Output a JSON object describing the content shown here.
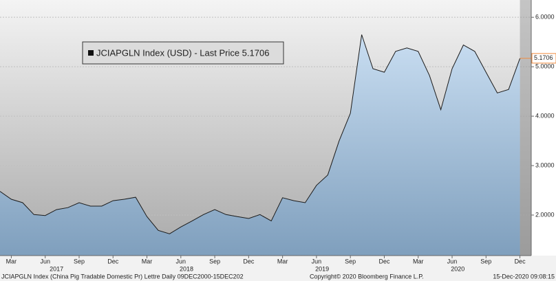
{
  "chart_data": {
    "type": "area",
    "series": [
      {
        "name": "JCIAPGLN Index (USD) - Last Price 5.1706",
        "color": "#1a1a1a",
        "x": [
          "2017-02",
          "2017-03",
          "2017-04",
          "2017-05",
          "2017-06",
          "2017-07",
          "2017-08",
          "2017-09",
          "2017-10",
          "2017-11",
          "2017-12",
          "2018-01",
          "2018-02",
          "2018-03",
          "2018-04",
          "2018-05",
          "2018-06",
          "2018-07",
          "2018-08",
          "2018-09",
          "2018-10",
          "2018-11",
          "2018-12",
          "2019-01",
          "2019-02",
          "2019-03",
          "2019-04",
          "2019-05",
          "2019-06",
          "2019-07",
          "2019-08",
          "2019-09",
          "2019-10",
          "2019-11",
          "2019-12",
          "2020-01",
          "2020-02",
          "2020-03",
          "2020-04",
          "2020-05",
          "2020-06",
          "2020-07",
          "2020-08",
          "2020-09",
          "2020-10",
          "2020-11",
          "2020-12"
        ],
        "values": [
          2.48,
          2.32,
          2.25,
          2.01,
          1.99,
          2.11,
          2.15,
          2.25,
          2.18,
          2.18,
          2.29,
          2.32,
          2.36,
          1.97,
          1.69,
          1.62,
          1.76,
          1.88,
          2.01,
          2.11,
          2.01,
          1.97,
          1.93,
          2.01,
          1.88,
          2.35,
          2.29,
          2.25,
          2.6,
          2.81,
          3.5,
          4.06,
          5.65,
          4.96,
          4.89,
          5.31,
          5.38,
          5.31,
          4.82,
          4.13,
          4.96,
          5.44,
          5.31,
          4.89,
          4.47,
          4.54,
          5.1706
        ]
      }
    ],
    "xlim": [
      "2017-02",
      "2021-01"
    ],
    "xticks": [
      {
        "value": "2017-03",
        "label": "Mar"
      },
      {
        "value": "2017-06",
        "label": "Jun"
      },
      {
        "value": "2017-09",
        "label": "Sep"
      },
      {
        "value": "2017-12",
        "label": "Dec"
      },
      {
        "value": "2018-03",
        "label": "Mar"
      },
      {
        "value": "2018-06",
        "label": "Jun"
      },
      {
        "value": "2018-09",
        "label": "Sep"
      },
      {
        "value": "2018-12",
        "label": "Dec"
      },
      {
        "value": "2019-03",
        "label": "Mar"
      },
      {
        "value": "2019-06",
        "label": "Jun"
      },
      {
        "value": "2019-09",
        "label": "Sep"
      },
      {
        "value": "2019-12",
        "label": "Dec"
      },
      {
        "value": "2020-03",
        "label": "Mar"
      },
      {
        "value": "2020-06",
        "label": "Jun"
      },
      {
        "value": "2020-09",
        "label": "Sep"
      },
      {
        "value": "2020-12",
        "label": "Dec"
      }
    ],
    "years": [
      "2017",
      "2018",
      "2019",
      "2020"
    ],
    "ylim": [
      1.18,
      6.35
    ],
    "yticks": [
      {
        "value": 2,
        "label": "2.0000"
      },
      {
        "value": 3,
        "label": "3.0000"
      },
      {
        "value": 4,
        "label": "4.0000"
      },
      {
        "value": 5,
        "label": "5.0000"
      },
      {
        "value": 6,
        "label": "6.0000"
      }
    ],
    "grid": true,
    "footer": {
      "left": "JCIAPGLN Index (China Pig Tradable Domestic Pr) Lettre  Daily 09DEC2000-15DEC202",
      "center": "Copyright© 2020 Bloomberg Finance L.P.",
      "right": "15-Dec-2020 09:08:15"
    }
  }
}
